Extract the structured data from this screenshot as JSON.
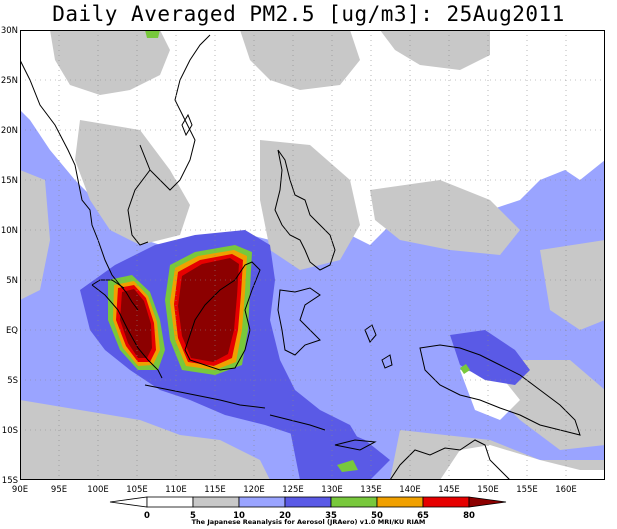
{
  "title": "Daily Averaged PM2.5 [ug/m3]: 25Aug2011",
  "map": {
    "lon_labels": [
      "90E",
      "95E",
      "100E",
      "105E",
      "110E",
      "115E",
      "120E",
      "125E",
      "130E",
      "135E",
      "140E",
      "145E",
      "150E",
      "155E",
      "160E"
    ],
    "lat_labels": [
      "30N",
      "25N",
      "20N",
      "15N",
      "10N",
      "5N",
      "EQ",
      "5S",
      "10S",
      "15S"
    ],
    "colors": {
      "water": "#ffffff",
      "level_5_10": "#c8c8c8",
      "level_10_20": "#9aa4ff",
      "level_20_35": "#5a5ae6",
      "level_35_50": "#78c83c",
      "level_50_65": "#f0a000",
      "level_65_80": "#e60000",
      "level_80_plus": "#8c0000",
      "coast": "#000000",
      "grid": "#888888"
    }
  },
  "colorbar": {
    "labels": [
      "0",
      "5",
      "10",
      "20",
      "35",
      "50",
      "65",
      "80"
    ]
  },
  "credit": "The Japanese Reanalysis for Aerosol (JRAero) v1.0 MRI/KU RIAM"
}
